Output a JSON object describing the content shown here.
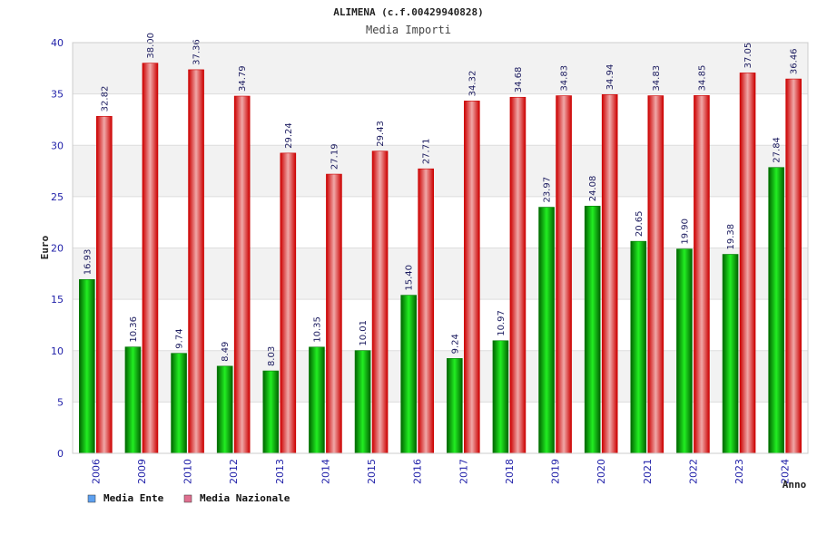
{
  "chart_data": {
    "type": "bar",
    "title": "ALIMENA (c.f.00429940828)",
    "subtitle": "Media Importi",
    "xlabel": "Anno",
    "ylabel": "Euro",
    "ylim": [
      0,
      40
    ],
    "yticks": [
      "0",
      "5",
      "10",
      "15",
      "20",
      "25",
      "30",
      "35",
      "40"
    ],
    "grid": true,
    "legend_position": "bottom-left",
    "categories": [
      "2006",
      "2009",
      "2010",
      "2012",
      "2013",
      "2014",
      "2015",
      "2016",
      "2017",
      "2018",
      "2019",
      "2020",
      "2021",
      "2022",
      "2023",
      "2024"
    ],
    "series": [
      {
        "name": "Media Ente",
        "values": [
          16.93,
          10.36,
          9.74,
          8.49,
          8.03,
          10.35,
          10.01,
          15.4,
          9.24,
          10.97,
          23.97,
          24.08,
          20.65,
          19.9,
          19.38,
          27.84
        ],
        "labels": [
          "16.93",
          "10.36",
          "9.74",
          "8.49",
          "8.03",
          "10.35",
          "10.01",
          "15.40",
          "9.24",
          "10.97",
          "23.97",
          "24.08",
          "20.65",
          "19.90",
          "19.38",
          "27.84"
        ],
        "color": "#00b000",
        "legend_color": "#5da0ef"
      },
      {
        "name": "Media Nazionale",
        "values": [
          32.82,
          38.0,
          37.36,
          34.79,
          29.24,
          27.19,
          29.43,
          27.71,
          34.32,
          34.68,
          34.83,
          34.94,
          34.83,
          34.85,
          37.05,
          36.46
        ],
        "labels": [
          "32.82",
          "38.00",
          "37.36",
          "34.79",
          "29.24",
          "27.19",
          "29.43",
          "27.71",
          "34.32",
          "34.68",
          "34.83",
          "34.94",
          "34.83",
          "34.85",
          "37.05",
          "36.46"
        ],
        "color": "#ee1111",
        "legend_color": "#e07090"
      }
    ]
  }
}
